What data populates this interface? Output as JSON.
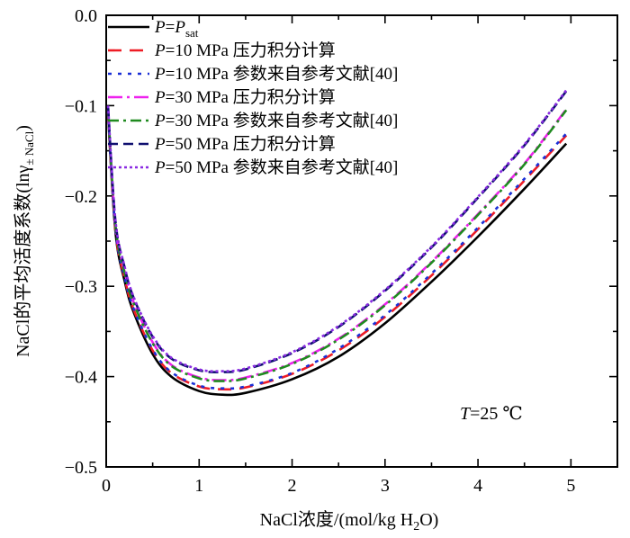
{
  "chart_data": {
    "type": "line",
    "xlabel": "NaCl浓度/(mol/kg H",
    "xlabel_sub": "2",
    "xlabel_end": "O)",
    "ylabel": "NaCl的平均活度系数(lnγ",
    "ylabel_sub": "± NaCl",
    "ylabel_end": ")",
    "xlim": [
      0,
      5.5
    ],
    "ylim": [
      -0.5,
      0.0
    ],
    "x_ticks": [
      "0",
      "1",
      "2",
      "3",
      "4",
      "5"
    ],
    "y_ticks": [
      "0.0",
      "−0.1",
      "−0.2",
      "−0.3",
      "−0.4",
      "−0.5"
    ],
    "annotation": {
      "var": "T",
      "text": "=25 ℃"
    },
    "series": [
      {
        "label_var": "P",
        "label_mid": "=",
        "label_var2": "P",
        "label_sub": "sat",
        "label_text": "",
        "color": "#000000",
        "dash": "none",
        "width": 2.6,
        "x": [
          0.02,
          0.1,
          0.2,
          0.3,
          0.5,
          0.7,
          1.0,
          1.25,
          1.5,
          2.0,
          2.5,
          3.0,
          3.5,
          4.0,
          4.5,
          4.95
        ],
        "y": [
          -0.11,
          -0.24,
          -0.295,
          -0.33,
          -0.375,
          -0.4,
          -0.416,
          -0.42,
          -0.418,
          -0.403,
          -0.378,
          -0.341,
          -0.295,
          -0.245,
          -0.192,
          -0.142
        ]
      },
      {
        "label_var": "P",
        "label_text": "=10 MPa 压力积分计算",
        "color": "#ee1c25",
        "dash": "15,9",
        "width": 2.6,
        "x": [
          0.02,
          0.1,
          0.2,
          0.3,
          0.5,
          0.7,
          1.0,
          1.25,
          1.5,
          2.0,
          2.5,
          3.0,
          3.5,
          4.0,
          4.5,
          4.95
        ],
        "y": [
          -0.108,
          -0.238,
          -0.292,
          -0.327,
          -0.371,
          -0.396,
          -0.411,
          -0.414,
          -0.412,
          -0.397,
          -0.371,
          -0.334,
          -0.288,
          -0.237,
          -0.183,
          -0.133
        ]
      },
      {
        "label_var": "P",
        "label_text": "=10 MPa 参数来自参考文献[40]",
        "color": "#1a2fd6",
        "dash": "4,7",
        "width": 2.6,
        "x": [
          0.02,
          0.1,
          0.2,
          0.3,
          0.5,
          0.7,
          1.0,
          1.25,
          1.5,
          2.0,
          2.5,
          3.0,
          3.5,
          4.0,
          4.5,
          4.95
        ],
        "y": [
          -0.107,
          -0.237,
          -0.291,
          -0.326,
          -0.37,
          -0.395,
          -0.41,
          -0.413,
          -0.411,
          -0.396,
          -0.369,
          -0.332,
          -0.286,
          -0.235,
          -0.181,
          -0.131
        ]
      },
      {
        "label_var": "P",
        "label_text": "=30 MPa 压力积分计算",
        "color": "#ee22ee",
        "dash": "16,5,3,5",
        "width": 2.6,
        "x": [
          0.02,
          0.1,
          0.2,
          0.3,
          0.5,
          0.7,
          1.0,
          1.25,
          1.5,
          2.0,
          2.5,
          3.0,
          3.5,
          4.0,
          4.5,
          4.95
        ],
        "y": [
          -0.104,
          -0.232,
          -0.285,
          -0.319,
          -0.362,
          -0.387,
          -0.401,
          -0.404,
          -0.401,
          -0.385,
          -0.358,
          -0.32,
          -0.273,
          -0.22,
          -0.164,
          -0.104
        ]
      },
      {
        "label_var": "P",
        "label_text": "=30 MPa 参数来自参考文献[40]",
        "color": "#1f8a1f",
        "dash": "12,5,3,5",
        "width": 2.6,
        "x": [
          0.02,
          0.1,
          0.2,
          0.3,
          0.5,
          0.7,
          1.0,
          1.25,
          1.5,
          2.0,
          2.5,
          3.0,
          3.5,
          4.0,
          4.5,
          4.95
        ],
        "y": [
          -0.105,
          -0.233,
          -0.286,
          -0.32,
          -0.363,
          -0.388,
          -0.402,
          -0.405,
          -0.402,
          -0.386,
          -0.359,
          -0.321,
          -0.274,
          -0.221,
          -0.165,
          -0.105
        ]
      },
      {
        "label_var": "P",
        "label_text": "=50 MPa 压力积分计算",
        "color": "#101070",
        "dash": "11,6",
        "width": 2.6,
        "x": [
          0.02,
          0.1,
          0.2,
          0.3,
          0.5,
          0.7,
          1.0,
          1.25,
          1.5,
          2.0,
          2.5,
          3.0,
          3.5,
          4.0,
          4.5,
          4.95
        ],
        "y": [
          -0.101,
          -0.228,
          -0.28,
          -0.314,
          -0.356,
          -0.38,
          -0.393,
          -0.395,
          -0.392,
          -0.374,
          -0.345,
          -0.305,
          -0.257,
          -0.202,
          -0.144,
          -0.084
        ]
      },
      {
        "label_var": "P",
        "label_text": "=50 MPa 参数来自参考文献[40]",
        "color": "#8a2be2",
        "dash": "3,3",
        "width": 2.6,
        "x": [
          0.02,
          0.1,
          0.2,
          0.3,
          0.5,
          0.7,
          1.0,
          1.25,
          1.5,
          2.0,
          2.5,
          3.0,
          3.5,
          4.0,
          4.5,
          4.95
        ],
        "y": [
          -0.1,
          -0.227,
          -0.279,
          -0.313,
          -0.355,
          -0.379,
          -0.392,
          -0.394,
          -0.391,
          -0.373,
          -0.344,
          -0.304,
          -0.256,
          -0.201,
          -0.143,
          -0.083
        ]
      }
    ]
  }
}
